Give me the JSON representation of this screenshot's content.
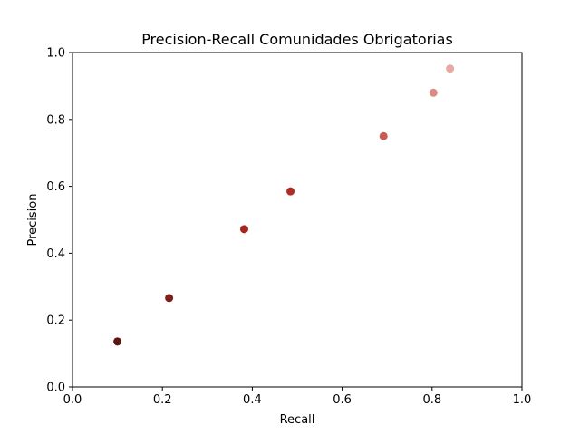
{
  "chart_data": {
    "type": "scatter",
    "title": "Precision-Recall Comunidades Obrigatorias",
    "xlabel": "Recall",
    "ylabel": "Precision",
    "xlim": [
      0.0,
      1.0
    ],
    "ylim": [
      0.0,
      1.0
    ],
    "xticks": [
      0.0,
      0.2,
      0.4,
      0.6,
      0.8,
      1.0
    ],
    "yticks": [
      0.0,
      0.2,
      0.4,
      0.6,
      0.8,
      1.0
    ],
    "xtick_labels": [
      "0.0",
      "0.2",
      "0.4",
      "0.6",
      "0.8",
      "1.0"
    ],
    "ytick_labels": [
      "0.0",
      "0.2",
      "0.4",
      "0.6",
      "0.8",
      "1.0"
    ],
    "grid": false,
    "points": [
      {
        "x": 0.1,
        "y": 0.136,
        "color": "#5a1612"
      },
      {
        "x": 0.215,
        "y": 0.266,
        "color": "#7a1f1a"
      },
      {
        "x": 0.382,
        "y": 0.472,
        "color": "#a5261f"
      },
      {
        "x": 0.485,
        "y": 0.585,
        "color": "#b02c24"
      },
      {
        "x": 0.692,
        "y": 0.75,
        "color": "#c95c52"
      },
      {
        "x": 0.803,
        "y": 0.88,
        "color": "#dc8c85"
      },
      {
        "x": 0.84,
        "y": 0.952,
        "color": "#e6aaa3"
      }
    ]
  }
}
